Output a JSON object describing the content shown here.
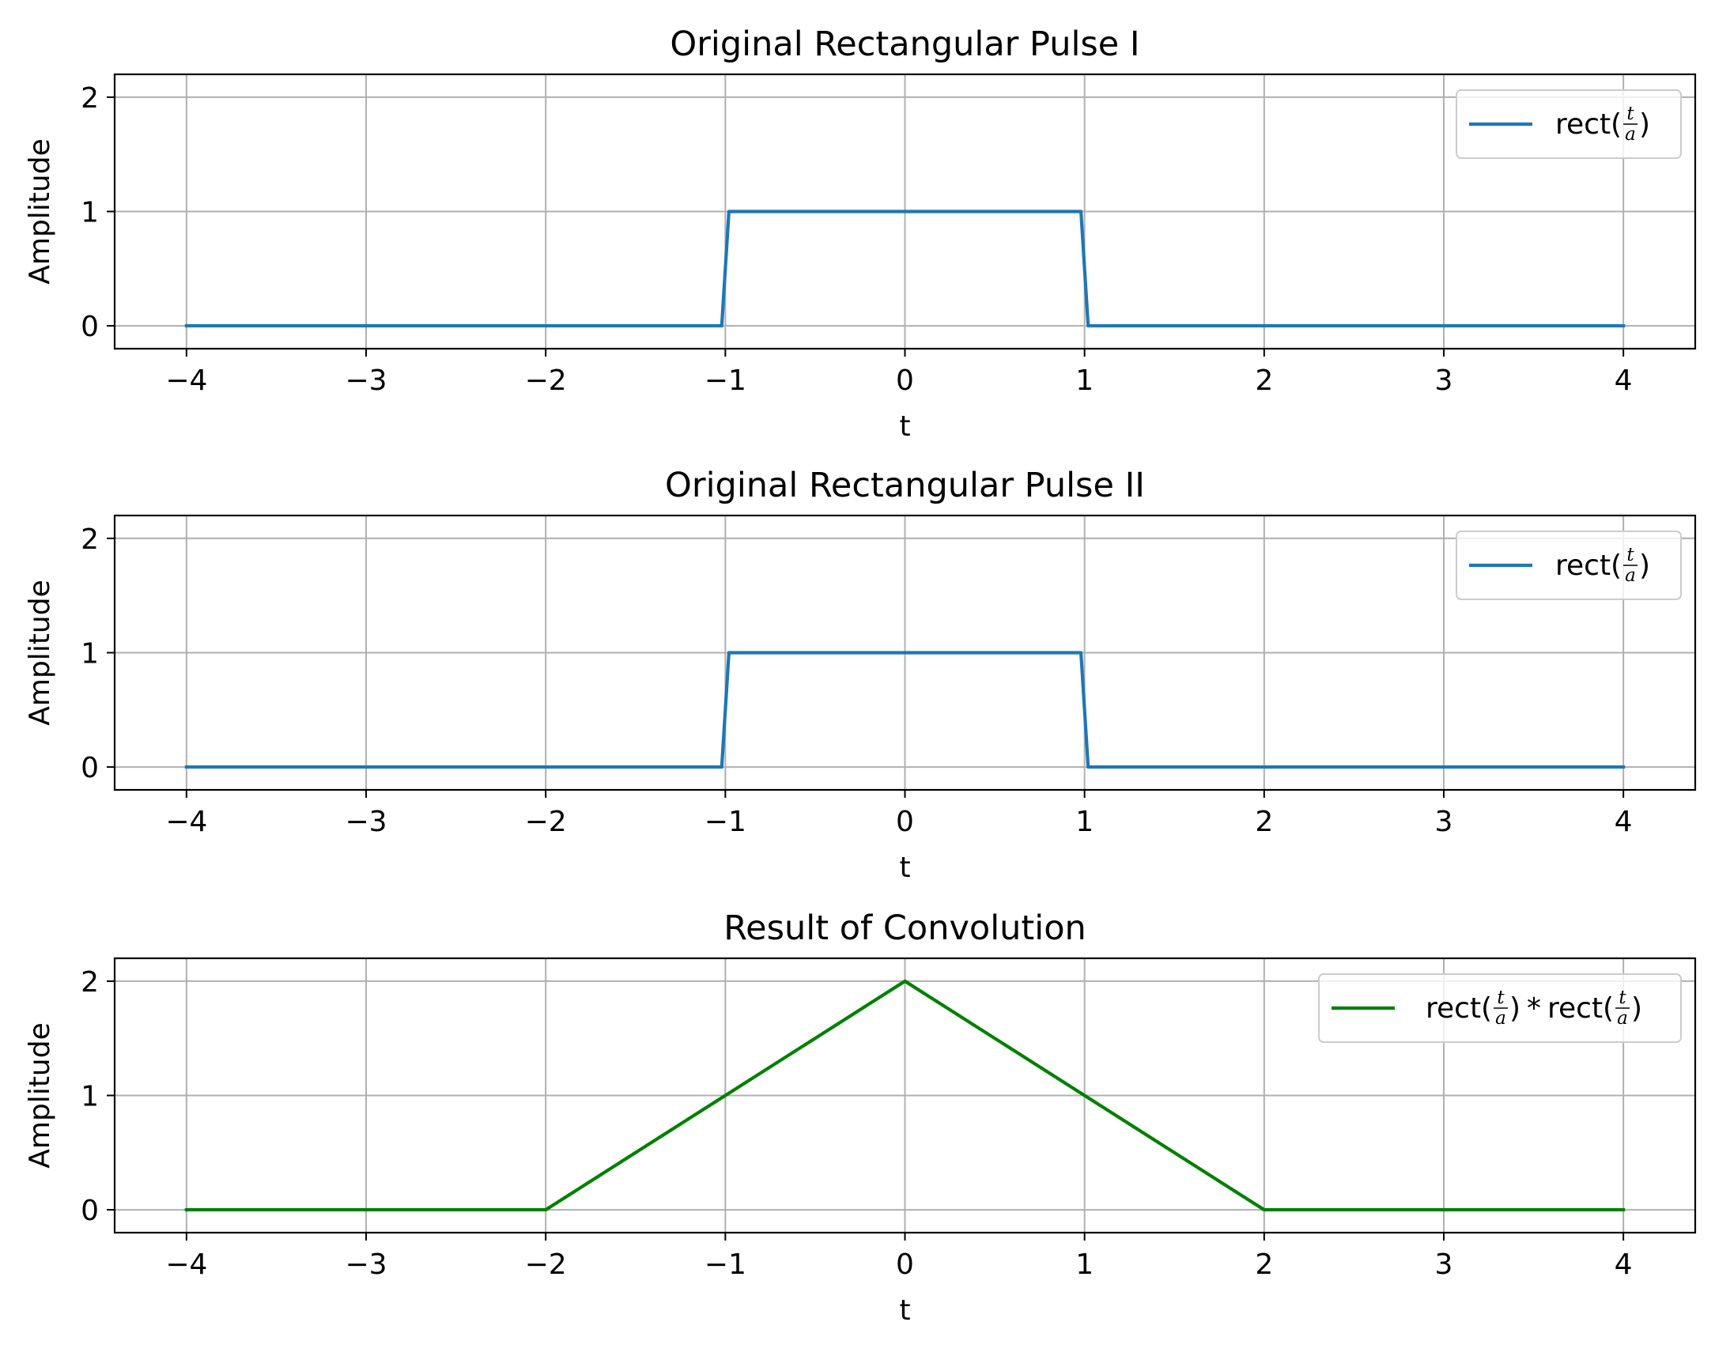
{
  "chart_data": [
    {
      "type": "line",
      "title": "Original Rectangular Pulse I",
      "xlabel": "t",
      "ylabel": "Amplitude",
      "xlim": [
        -4.4,
        4.4
      ],
      "ylim": [
        -0.2,
        2.2
      ],
      "xticks": [
        -4,
        -3,
        -2,
        -1,
        0,
        1,
        2,
        3,
        4
      ],
      "xtick_labels": [
        "−4",
        "−3",
        "−2",
        "−1",
        "0",
        "1",
        "2",
        "3",
        "4"
      ],
      "yticks": [
        0,
        1,
        2
      ],
      "ytick_labels": [
        "0",
        "1",
        "2"
      ],
      "grid": true,
      "legend_position": "upper right",
      "series": [
        {
          "name": "rect(t/a)",
          "color": "#1f77b4",
          "x": [
            -4,
            -1.02,
            -0.98,
            0.98,
            1.02,
            4
          ],
          "y": [
            0,
            0,
            1,
            1,
            0,
            0
          ]
        }
      ]
    },
    {
      "type": "line",
      "title": "Original Rectangular Pulse II",
      "xlabel": "t",
      "ylabel": "Amplitude",
      "xlim": [
        -4.4,
        4.4
      ],
      "ylim": [
        -0.2,
        2.2
      ],
      "xticks": [
        -4,
        -3,
        -2,
        -1,
        0,
        1,
        2,
        3,
        4
      ],
      "xtick_labels": [
        "−4",
        "−3",
        "−2",
        "−1",
        "0",
        "1",
        "2",
        "3",
        "4"
      ],
      "yticks": [
        0,
        1,
        2
      ],
      "ytick_labels": [
        "0",
        "1",
        "2"
      ],
      "grid": true,
      "legend_position": "upper right",
      "series": [
        {
          "name": "rect(t/a)",
          "color": "#1f77b4",
          "x": [
            -4,
            -1.02,
            -0.98,
            0.98,
            1.02,
            4
          ],
          "y": [
            0,
            0,
            1,
            1,
            0,
            0
          ]
        }
      ]
    },
    {
      "type": "line",
      "title": "Result of Convolution",
      "xlabel": "t",
      "ylabel": "Amplitude",
      "xlim": [
        -4.4,
        4.4
      ],
      "ylim": [
        -0.2,
        2.2
      ],
      "xticks": [
        -4,
        -3,
        -2,
        -1,
        0,
        1,
        2,
        3,
        4
      ],
      "xtick_labels": [
        "−4",
        "−3",
        "−2",
        "−1",
        "0",
        "1",
        "2",
        "3",
        "4"
      ],
      "yticks": [
        0,
        1,
        2
      ],
      "ytick_labels": [
        "0",
        "1",
        "2"
      ],
      "grid": true,
      "legend_position": "upper right",
      "series": [
        {
          "name": "rect(t/a) * rect(t/a)",
          "color": "#008000",
          "x": [
            -4,
            -2,
            0,
            2,
            4
          ],
          "y": [
            0,
            0,
            2,
            0,
            0
          ]
        }
      ]
    }
  ],
  "legend_text": {
    "rect_word": "rect",
    "open_paren": "(",
    "close_paren": ")",
    "numerator": "t",
    "denominator": "a",
    "conv_operator": "*"
  },
  "colors": {
    "grid": "#b0b0b0",
    "axes": "#000000",
    "legend_border": "#cccccc"
  }
}
